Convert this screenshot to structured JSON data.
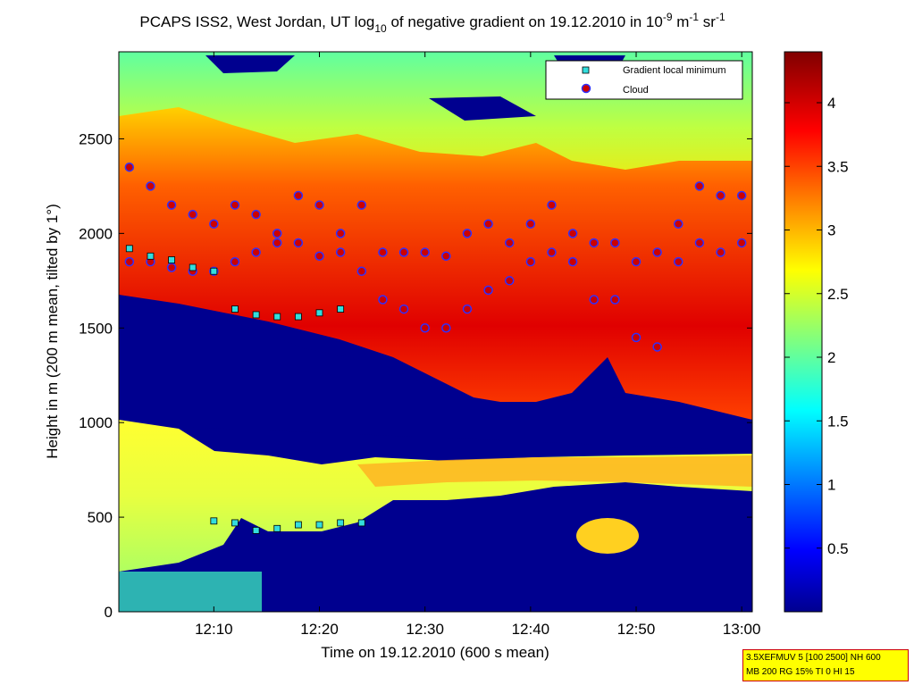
{
  "chart_data": {
    "type": "heatmap",
    "title": {
      "main": "PCAPS ISS2, West Jordan, UT log",
      "sub1": "10",
      "mid": " of negative gradient on 19.12.2010 in 10",
      "sup1": "-9",
      "unit1": " m",
      "sup2": "-1",
      "unit2": " sr",
      "sup3": "-1"
    },
    "xlabel": "Time on 19.12.2010 (600 s mean)",
    "ylabel": "Height in m (200 m mean, tilted by 1°)",
    "xlim": [
      "12:01",
      "13:01"
    ],
    "ylim": [
      0,
      2960
    ],
    "x_ticks": [
      "12:10",
      "12:20",
      "12:30",
      "12:40",
      "12:50",
      "13:00"
    ],
    "y_ticks": [
      "0",
      "500",
      "1000",
      "1500",
      "2000",
      "2500"
    ],
    "colorbar": {
      "range": [
        0,
        4.4
      ],
      "ticks": [
        "0.5",
        "1",
        "1.5",
        "2",
        "2.5",
        "3",
        "3.5",
        "4"
      ],
      "colormap": "jet"
    },
    "legend": {
      "placement": "top-right",
      "entries": [
        {
          "label": "Gradient local minimum",
          "marker": "square",
          "color": "#33dddd"
        },
        {
          "label": "Cloud",
          "marker": "circle",
          "color": "#cc0000"
        }
      ]
    },
    "series": [
      {
        "name": "Cloud",
        "x": [
          "12:02",
          "12:04",
          "12:06",
          "12:08",
          "12:10",
          "12:12",
          "12:14",
          "12:16",
          "12:18",
          "12:20",
          "12:22",
          "12:24",
          "12:26",
          "12:28",
          "12:30",
          "12:32",
          "12:34",
          "12:36",
          "12:38",
          "12:40",
          "12:42",
          "12:44",
          "12:46",
          "12:48",
          "12:50",
          "12:52",
          "12:54",
          "12:56",
          "12:58",
          "13:00"
        ],
        "y_upper": [
          2350,
          2250,
          2150,
          2100,
          2050,
          2150,
          2100,
          2000,
          2200,
          2150,
          2000,
          2150,
          1900,
          1900,
          1900,
          1880,
          2000,
          2050,
          1950,
          2050,
          2150,
          2000,
          1950,
          1950,
          1850,
          1900,
          2050,
          2250,
          2200,
          2200
        ],
        "y_lower": [
          1850,
          1850,
          1820,
          1800,
          1800,
          1850,
          1900,
          1950,
          1950,
          1880,
          1900,
          1800,
          1650,
          1600,
          1500,
          1500,
          1600,
          1700,
          1750,
          1850,
          1900,
          1850,
          1650,
          1650,
          1450,
          1400,
          1850,
          1950,
          1900,
          1950
        ]
      },
      {
        "name": "Gradient local minimum",
        "x": [
          "12:02",
          "12:04",
          "12:06",
          "12:08",
          "12:10",
          "12:12",
          "12:14",
          "12:16",
          "12:18",
          "12:20",
          "12:22",
          "12:24"
        ],
        "y_upper": [
          1920,
          1880,
          1860,
          1820,
          1800,
          1600,
          1570,
          1560,
          1560,
          1580,
          1600,
          null
        ],
        "y_lower": [
          null,
          null,
          null,
          null,
          480,
          470,
          430,
          440,
          460,
          460,
          470,
          470
        ]
      }
    ]
  },
  "infobox": {
    "line1": "3.5XEFMUV 5 [100 2500] NH 600",
    "line2": "MB 200 RG 15% TI 0 HI 15"
  }
}
